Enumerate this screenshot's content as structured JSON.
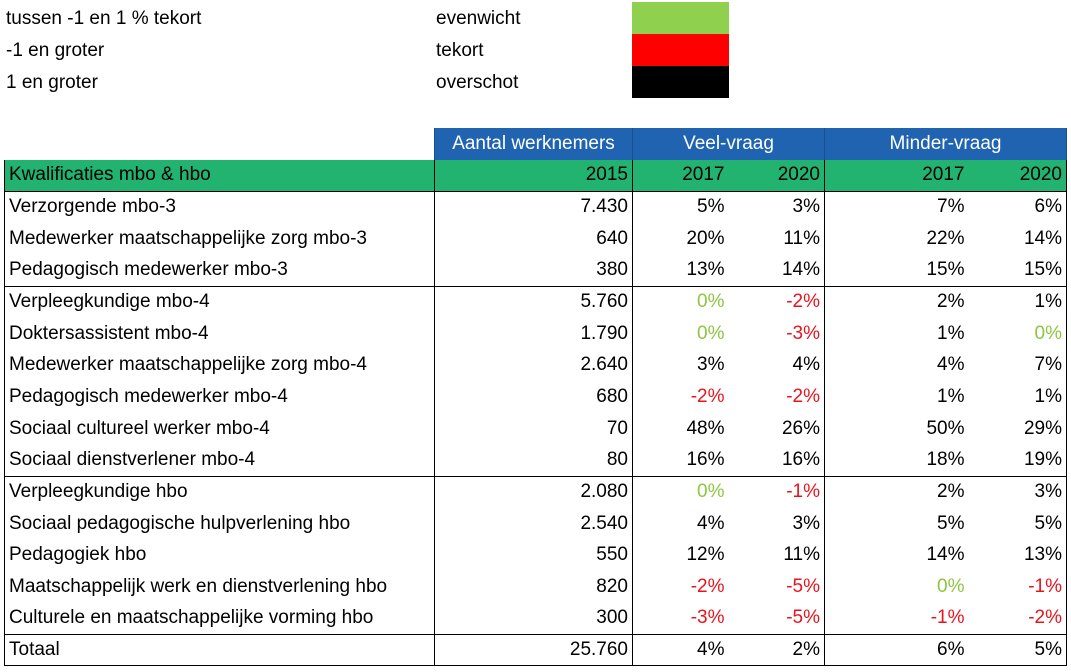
{
  "legend": [
    {
      "label": "tussen -1 en 1 % tekort",
      "status": "evenwicht",
      "color": "#8fd14f"
    },
    {
      "label": "-1 en groter",
      "status": "tekort",
      "color": "#ff0000"
    },
    {
      "label": "1 en groter",
      "status": "overschot",
      "color": "#000000"
    }
  ],
  "header": {
    "aantal": "Aantal werknemers",
    "veel": "Veel-vraag",
    "minder": "Minder-vraag",
    "kwalificaties": "Kwalificaties mbo & hbo",
    "y2015": "2015",
    "veel_2017": "2017",
    "veel_2020": "2020",
    "minder_2017": "2017",
    "minder_2020": "2020"
  },
  "rows": [
    {
      "name": "Verzorgende mbo-3",
      "aantal": "7.430",
      "v2017": "5%",
      "v2020": "3%",
      "m2017": "7%",
      "m2020": "6%",
      "s": [
        "plain",
        "plain",
        "plain",
        "plain"
      ],
      "groupTop": true
    },
    {
      "name": "Medewerker maatschappelijke zorg mbo-3",
      "aantal": "640",
      "v2017": "20%",
      "v2020": "11%",
      "m2017": "22%",
      "m2020": "14%",
      "s": [
        "plain",
        "plain",
        "plain",
        "plain"
      ]
    },
    {
      "name": "Pedagogisch medewerker mbo-3",
      "aantal": "380",
      "v2017": "13%",
      "v2020": "14%",
      "m2017": "15%",
      "m2020": "15%",
      "s": [
        "plain",
        "plain",
        "plain",
        "plain"
      ]
    },
    {
      "name": "Verpleegkundige mbo-4",
      "aantal": "5.760",
      "v2017": "0%",
      "v2020": "-2%",
      "m2017": "2%",
      "m2020": "1%",
      "s": [
        "pos",
        "neg",
        "plain",
        "plain"
      ],
      "groupTop": true
    },
    {
      "name": "Doktersassistent mbo-4",
      "aantal": "1.790",
      "v2017": "0%",
      "v2020": "-3%",
      "m2017": "1%",
      "m2020": "0%",
      "s": [
        "pos",
        "neg",
        "plain",
        "pos"
      ]
    },
    {
      "name": "Medewerker maatschappelijke zorg mbo-4",
      "aantal": "2.640",
      "v2017": "3%",
      "v2020": "4%",
      "m2017": "4%",
      "m2020": "7%",
      "s": [
        "plain",
        "plain",
        "plain",
        "plain"
      ]
    },
    {
      "name": "Pedagogisch medewerker mbo-4",
      "aantal": "680",
      "v2017": "-2%",
      "v2020": "-2%",
      "m2017": "1%",
      "m2020": "1%",
      "s": [
        "neg",
        "neg",
        "plain",
        "plain"
      ]
    },
    {
      "name": "Sociaal cultureel werker mbo-4",
      "aantal": "70",
      "v2017": "48%",
      "v2020": "26%",
      "m2017": "50%",
      "m2020": "29%",
      "s": [
        "plain",
        "plain",
        "plain",
        "plain"
      ]
    },
    {
      "name": "Sociaal dienstverlener mbo-4",
      "aantal": "80",
      "v2017": "16%",
      "v2020": "16%",
      "m2017": "18%",
      "m2020": "19%",
      "s": [
        "plain",
        "plain",
        "plain",
        "plain"
      ]
    },
    {
      "name": "Verpleegkundige hbo",
      "aantal": "2.080",
      "v2017": "0%",
      "v2020": "-1%",
      "m2017": "2%",
      "m2020": "3%",
      "s": [
        "pos",
        "neg",
        "plain",
        "plain"
      ],
      "groupTop": true
    },
    {
      "name": "Sociaal pedagogische hulpverlening hbo",
      "aantal": "2.540",
      "v2017": "4%",
      "v2020": "3%",
      "m2017": "5%",
      "m2020": "5%",
      "s": [
        "plain",
        "plain",
        "plain",
        "plain"
      ]
    },
    {
      "name": "Pedagogiek hbo",
      "aantal": "550",
      "v2017": "12%",
      "v2020": "11%",
      "m2017": "14%",
      "m2020": "13%",
      "s": [
        "plain",
        "plain",
        "plain",
        "plain"
      ]
    },
    {
      "name": "Maatschappelijk werk en dienstverlening hbo",
      "aantal": "820",
      "v2017": "-2%",
      "v2020": "-5%",
      "m2017": "0%",
      "m2020": "-1%",
      "s": [
        "neg",
        "neg",
        "pos",
        "neg"
      ]
    },
    {
      "name": "Culturele en maatschappelijke vorming hbo",
      "aantal": "300",
      "v2017": "-3%",
      "v2020": "-5%",
      "m2017": "-1%",
      "m2020": "-2%",
      "s": [
        "neg",
        "neg",
        "neg",
        "neg"
      ]
    }
  ],
  "total": {
    "name": "Totaal",
    "aantal": "25.760",
    "v2017": "4%",
    "v2020": "2%",
    "m2017": "6%",
    "m2020": "5%"
  }
}
